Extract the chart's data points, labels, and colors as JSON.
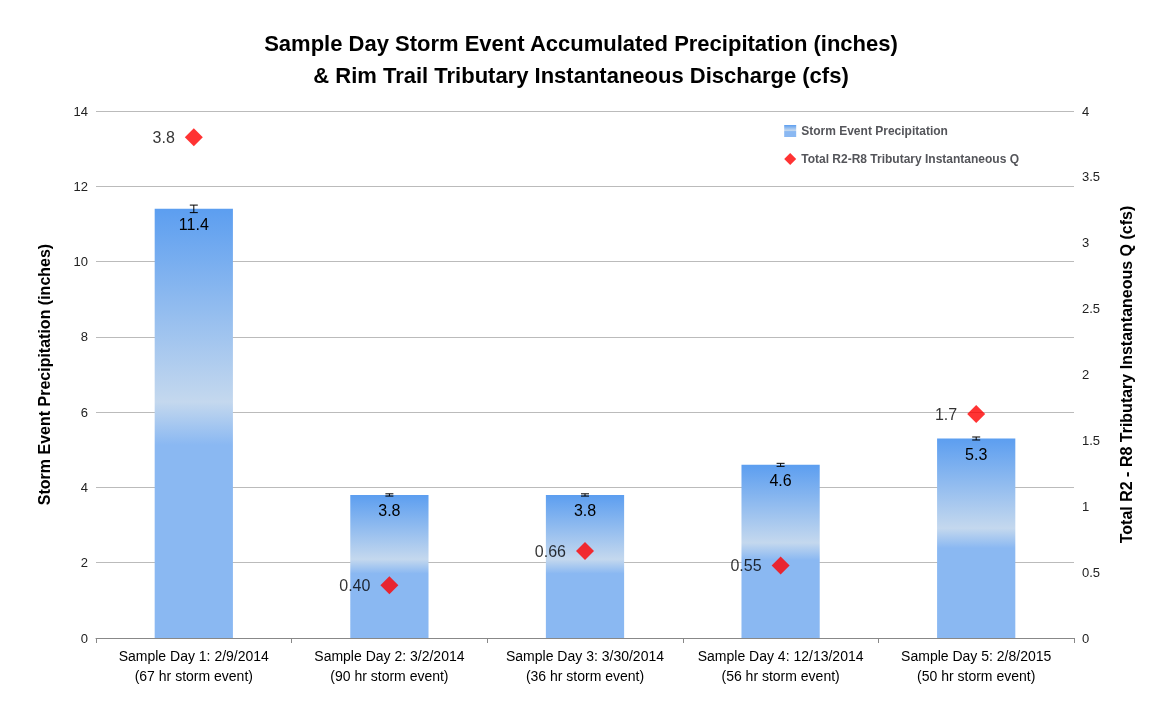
{
  "chart_data": {
    "type": "bar",
    "title": "Sample Day Storm Event Accumulated Precipitation (inches)\n& Rim Trail Tributary Instantaneous Discharge (cfs)",
    "ylabel": "Storm Event Precipitation (inches)",
    "y2label": "Total R2 - R8 Tributary Instantaneous Q (cfs)",
    "categories": [
      "Sample Day 1: 2/9/2014\n(67 hr storm event)",
      "Sample Day 2: 3/2/2014\n(90 hr storm event)",
      "Sample Day 3: 3/30/2014\n(36 hr storm event)",
      "Sample Day 4: 12/13/2014\n(56 hr storm event)",
      "Sample Day 5: 2/8/2015\n(50 hr storm event)"
    ],
    "series": [
      {
        "name": "Storm Event Precipitation",
        "color": "#8ab8f2",
        "values": [
          11.4,
          3.8,
          3.8,
          4.6,
          5.3
        ],
        "errors": [
          0.1,
          0.03,
          0.03,
          0.04,
          0.04
        ],
        "value_labels": [
          "11.4",
          "3.8",
          "3.8",
          "4.6",
          "5.3"
        ]
      },
      {
        "name": "Total R2-R8 Tributary Instantaneous Q",
        "type": "scatter",
        "axis": "y2",
        "color": "#ff0000",
        "marker": "diamond",
        "values": [
          3.8,
          0.4,
          0.66,
          0.55,
          1.7
        ],
        "value_labels": [
          "3.8",
          "0.40",
          "0.66",
          "0.55",
          "1.7"
        ]
      }
    ],
    "ylim": [
      0,
      14
    ],
    "yticks": [
      0,
      2,
      4,
      6,
      8,
      10,
      12,
      14
    ],
    "y2lim": [
      0,
      4
    ],
    "y2ticks": [
      0,
      0.5,
      1,
      1.5,
      2,
      2.5,
      3,
      3.5,
      4
    ],
    "grid": "y",
    "legend": "top right"
  }
}
